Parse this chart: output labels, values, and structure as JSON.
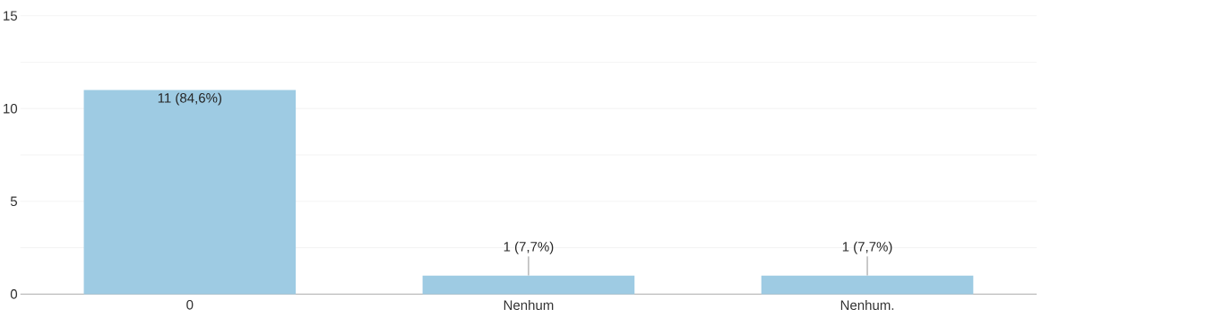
{
  "chart_data": {
    "type": "bar",
    "categories": [
      "0",
      "Nenhum",
      "Nenhum."
    ],
    "values": [
      11,
      1,
      1
    ],
    "value_labels": [
      "11 (84,6%)",
      "1 (7,7%)",
      "1 (7,7%)"
    ],
    "color": "#9ecbe3",
    "ylim": [
      0,
      15
    ],
    "yticks": [
      0,
      {
        "value": 2.5,
        "label": null
      },
      5,
      {
        "value": 7.5,
        "label": null
      },
      10,
      {
        "value": 12.5,
        "label": null
      },
      15
    ],
    "grid": "y"
  }
}
